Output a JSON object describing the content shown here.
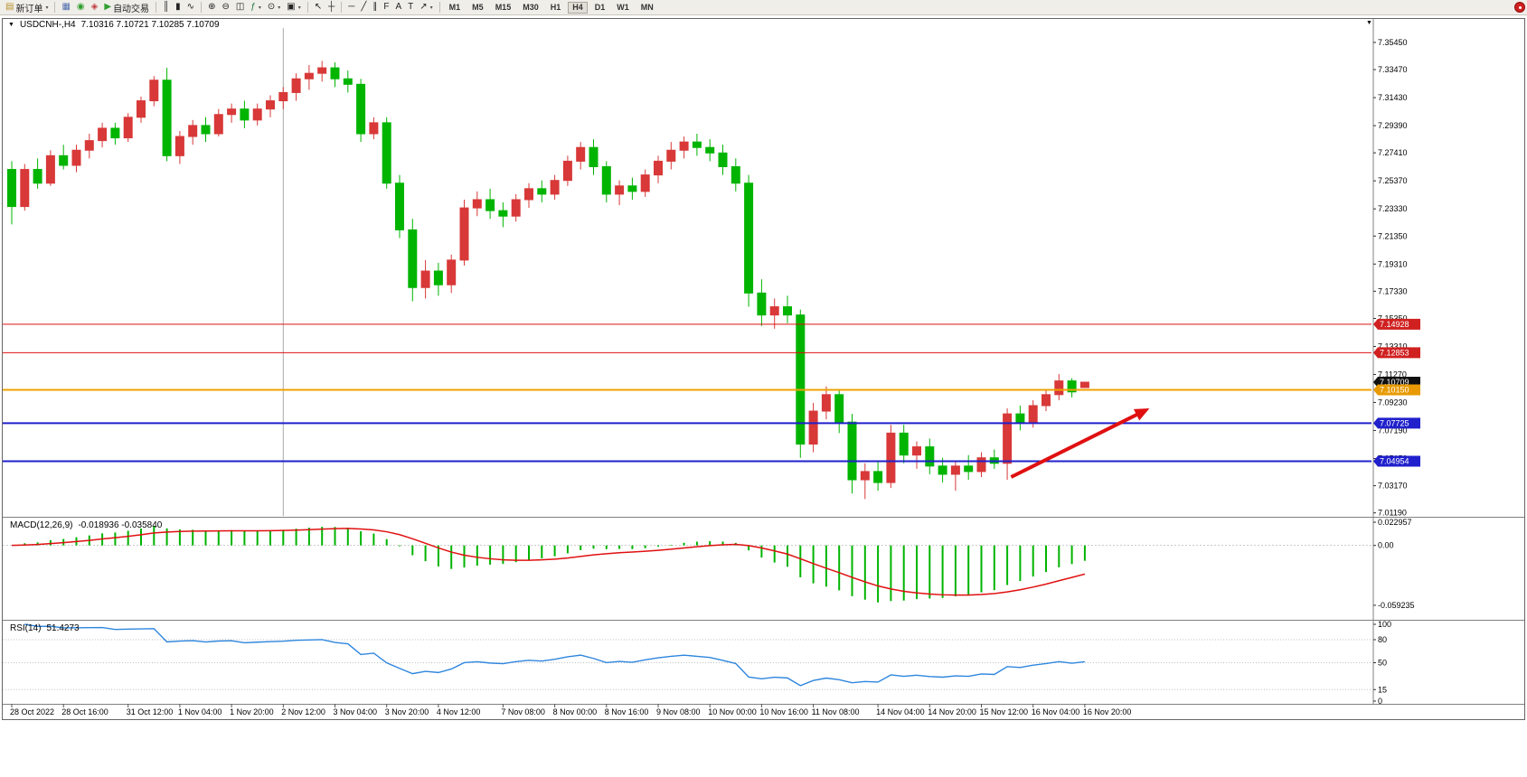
{
  "toolbar": {
    "buttons": [
      {
        "name": "new-order-button",
        "icon": "new-order-icon",
        "glyph": "▤",
        "color": "#b8902c",
        "label": "新订单",
        "dropdown": true
      },
      {
        "sep": true
      },
      {
        "name": "charts-window-button",
        "icon": "chart-window-icon",
        "glyph": "▦",
        "color": "#4f6fae"
      },
      {
        "name": "sound-alert-button",
        "icon": "speaker-icon",
        "glyph": "◉",
        "color": "#2f9e2f"
      },
      {
        "name": "news-button",
        "icon": "news-icon",
        "glyph": "◈",
        "color": "#bf4040"
      },
      {
        "name": "auto-trading-button",
        "icon": "auto-trading-icon",
        "glyph": "▶",
        "color": "#2f9e2f",
        "label": "自动交易"
      },
      {
        "sep": true
      },
      {
        "name": "bar-chart-button",
        "icon": "bar-chart-icon",
        "glyph": "║"
      },
      {
        "name": "candlestick-chart-button",
        "icon": "candlestick-icon",
        "glyph": "▮"
      },
      {
        "name": "line-chart-button",
        "icon": "line-chart-icon",
        "glyph": "∿"
      },
      {
        "sep": true
      },
      {
        "name": "zoom-in-button",
        "icon": "zoom-in-icon",
        "glyph": "⊕"
      },
      {
        "name": "zoom-out-button",
        "icon": "zoom-out-icon",
        "glyph": "⊖"
      },
      {
        "name": "tile-windows-button",
        "icon": "tile-windows-icon",
        "glyph": "◫"
      },
      {
        "name": "indicators-button",
        "icon": "indicators-icon",
        "glyph": "ƒ",
        "color": "#1f7a46",
        "dropdown": true
      },
      {
        "name": "periods-button",
        "icon": "clock-icon",
        "glyph": "⊙",
        "dropdown": true
      },
      {
        "name": "templates-button",
        "icon": "template-icon",
        "glyph": "▣",
        "dropdown": true
      },
      {
        "sep": true
      },
      {
        "name": "cursor-button",
        "icon": "cursor-icon",
        "glyph": "↖"
      },
      {
        "name": "crosshair-button",
        "icon": "crosshair-icon",
        "glyph": "┼"
      },
      {
        "sep": true
      },
      {
        "name": "horizontal-line-button",
        "icon": "horizontal-line-icon",
        "glyph": "─"
      },
      {
        "name": "trendline-button",
        "icon": "trendline-icon",
        "glyph": "╱"
      },
      {
        "name": "channel-button",
        "icon": "channel-icon",
        "glyph": "∥"
      },
      {
        "name": "fibonacci-button",
        "icon": "fibonacci-icon",
        "glyph": "F"
      },
      {
        "name": "text-button",
        "icon": "text-icon",
        "glyph": "A"
      },
      {
        "name": "text-label-button",
        "icon": "text-label-icon",
        "glyph": "T"
      },
      {
        "name": "arrows-button",
        "icon": "arrow-symbol-icon",
        "glyph": "↗",
        "dropdown": true
      },
      {
        "sep": true
      }
    ],
    "timeframes": [
      "M1",
      "M5",
      "M15",
      "M30",
      "H1",
      "H4",
      "D1",
      "W1",
      "MN"
    ],
    "active_timeframe": "H4"
  },
  "chart": {
    "symbol_period": "USDCNH-,H4",
    "ohlc": "7.10316 7.10721 7.10285 7.10709"
  },
  "indicators": {
    "macd": {
      "name": "MACD(12,26,9)",
      "values": "-0.018936 -0.035840",
      "scale": [
        "0.022957",
        "0.00",
        "-0.059235"
      ]
    },
    "rsi": {
      "name": "RSI(14)",
      "value": "51.4273",
      "scale": [
        "100",
        "80",
        "50",
        "15",
        "0"
      ],
      "levels": [
        80,
        50,
        15
      ]
    }
  },
  "chart_data": {
    "type": "candlestick",
    "symbol": "USDCNH-",
    "timeframe": "H4",
    "bull_color": "#d83838",
    "bear_color": "#00b400",
    "price_axis_labels": [
      "7.35450",
      "7.33470",
      "7.31430",
      "7.29390",
      "7.27410",
      "7.25370",
      "7.23330",
      "7.21350",
      "7.19310",
      "7.17330",
      "7.15350",
      "7.13310",
      "7.11270",
      "7.09230",
      "7.07190",
      "7.05150",
      "7.03170",
      "7.01190"
    ],
    "date_axis": [
      {
        "label": "28 Oct 2022",
        "bar": 0
      },
      {
        "label": "28 Oct 16:00",
        "bar": 4
      },
      {
        "label": "31 Oct 12:00",
        "bar": 9
      },
      {
        "label": "1 Nov 04:00",
        "bar": 13
      },
      {
        "label": "1 Nov 20:00",
        "bar": 17
      },
      {
        "label": "2 Nov 12:00",
        "bar": 21
      },
      {
        "label": "3 Nov 04:00",
        "bar": 25
      },
      {
        "label": "3 Nov 20:00",
        "bar": 29
      },
      {
        "label": "4 Nov 12:00",
        "bar": 33
      },
      {
        "label": "7 Nov 08:00",
        "bar": 38
      },
      {
        "label": "8 Nov 00:00",
        "bar": 42
      },
      {
        "label": "8 Nov 16:00",
        "bar": 46
      },
      {
        "label": "9 Nov 08:00",
        "bar": 50
      },
      {
        "label": "10 Nov 00:00",
        "bar": 54
      },
      {
        "label": "10 Nov 16:00",
        "bar": 58
      },
      {
        "label": "11 Nov 08:00",
        "bar": 62
      },
      {
        "label": "14 Nov 04:00",
        "bar": 67
      },
      {
        "label": "14 Nov 20:00",
        "bar": 71
      },
      {
        "label": "15 Nov 12:00",
        "bar": 75
      },
      {
        "label": "16 Nov 04:00",
        "bar": 79
      },
      {
        "label": "16 Nov 20:00",
        "bar": 83
      }
    ],
    "candles": [
      [
        7.262,
        7.268,
        7.222,
        7.235
      ],
      [
        7.235,
        7.266,
        7.232,
        7.262
      ],
      [
        7.262,
        7.27,
        7.248,
        7.252
      ],
      [
        7.252,
        7.276,
        7.25,
        7.272
      ],
      [
        7.272,
        7.28,
        7.262,
        7.265
      ],
      [
        7.265,
        7.28,
        7.26,
        7.276
      ],
      [
        7.276,
        7.288,
        7.27,
        7.283
      ],
      [
        7.283,
        7.296,
        7.278,
        7.292
      ],
      [
        7.292,
        7.296,
        7.28,
        7.285
      ],
      [
        7.285,
        7.303,
        7.282,
        7.3
      ],
      [
        7.3,
        7.315,
        7.296,
        7.312
      ],
      [
        7.312,
        7.33,
        7.308,
        7.327
      ],
      [
        7.327,
        7.336,
        7.268,
        7.272
      ],
      [
        7.272,
        7.29,
        7.266,
        7.286
      ],
      [
        7.286,
        7.298,
        7.28,
        7.294
      ],
      [
        7.294,
        7.3,
        7.282,
        7.288
      ],
      [
        7.288,
        7.306,
        7.286,
        7.302
      ],
      [
        7.302,
        7.31,
        7.296,
        7.306
      ],
      [
        7.306,
        7.312,
        7.292,
        7.298
      ],
      [
        7.298,
        7.31,
        7.294,
        7.306
      ],
      [
        7.306,
        7.316,
        7.3,
        7.312
      ],
      [
        7.312,
        7.322,
        7.306,
        7.318
      ],
      [
        7.318,
        7.332,
        7.312,
        7.328
      ],
      [
        7.328,
        7.338,
        7.32,
        7.332
      ],
      [
        7.332,
        7.341,
        7.326,
        7.336
      ],
      [
        7.336,
        7.34,
        7.322,
        7.328
      ],
      [
        7.328,
        7.334,
        7.318,
        7.324
      ],
      [
        7.324,
        7.328,
        7.282,
        7.288
      ],
      [
        7.288,
        7.3,
        7.284,
        7.296
      ],
      [
        7.296,
        7.3,
        7.248,
        7.252
      ],
      [
        7.252,
        7.258,
        7.212,
        7.218
      ],
      [
        7.218,
        7.226,
        7.166,
        7.176
      ],
      [
        7.176,
        7.196,
        7.168,
        7.188
      ],
      [
        7.188,
        7.194,
        7.17,
        7.178
      ],
      [
        7.178,
        7.2,
        7.172,
        7.196
      ],
      [
        7.196,
        7.24,
        7.192,
        7.234
      ],
      [
        7.234,
        7.246,
        7.228,
        7.24
      ],
      [
        7.24,
        7.248,
        7.226,
        7.232
      ],
      [
        7.232,
        7.238,
        7.22,
        7.228
      ],
      [
        7.228,
        7.244,
        7.224,
        7.24
      ],
      [
        7.24,
        7.252,
        7.234,
        7.248
      ],
      [
        7.248,
        7.254,
        7.238,
        7.244
      ],
      [
        7.244,
        7.258,
        7.24,
        7.254
      ],
      [
        7.254,
        7.272,
        7.25,
        7.268
      ],
      [
        7.268,
        7.282,
        7.262,
        7.278
      ],
      [
        7.278,
        7.284,
        7.258,
        7.264
      ],
      [
        7.264,
        7.268,
        7.238,
        7.244
      ],
      [
        7.244,
        7.254,
        7.236,
        7.25
      ],
      [
        7.25,
        7.256,
        7.24,
        7.246
      ],
      [
        7.246,
        7.262,
        7.242,
        7.258
      ],
      [
        7.258,
        7.272,
        7.252,
        7.268
      ],
      [
        7.268,
        7.282,
        7.262,
        7.276
      ],
      [
        7.276,
        7.286,
        7.27,
        7.282
      ],
      [
        7.282,
        7.288,
        7.272,
        7.278
      ],
      [
        7.278,
        7.284,
        7.268,
        7.274
      ],
      [
        7.274,
        7.28,
        7.258,
        7.264
      ],
      [
        7.264,
        7.27,
        7.246,
        7.252
      ],
      [
        7.252,
        7.258,
        7.162,
        7.172
      ],
      [
        7.172,
        7.182,
        7.148,
        7.156
      ],
      [
        7.156,
        7.168,
        7.146,
        7.162
      ],
      [
        7.162,
        7.17,
        7.15,
        7.156
      ],
      [
        7.156,
        7.16,
        7.052,
        7.062
      ],
      [
        7.062,
        7.092,
        7.056,
        7.086
      ],
      [
        7.086,
        7.104,
        7.08,
        7.098
      ],
      [
        7.098,
        7.102,
        7.07,
        7.078
      ],
      [
        7.078,
        7.084,
        7.026,
        7.036
      ],
      [
        7.036,
        7.048,
        7.022,
        7.042
      ],
      [
        7.042,
        7.05,
        7.028,
        7.034
      ],
      [
        7.034,
        7.076,
        7.03,
        7.07
      ],
      [
        7.07,
        7.076,
        7.048,
        7.054
      ],
      [
        7.054,
        7.064,
        7.044,
        7.06
      ],
      [
        7.06,
        7.066,
        7.04,
        7.046
      ],
      [
        7.046,
        7.052,
        7.034,
        7.04
      ],
      [
        7.04,
        7.05,
        7.028,
        7.046
      ],
      [
        7.046,
        7.054,
        7.036,
        7.042
      ],
      [
        7.042,
        7.056,
        7.038,
        7.052
      ],
      [
        7.052,
        7.058,
        7.044,
        7.048
      ],
      [
        7.048,
        7.088,
        7.036,
        7.084
      ],
      [
        7.084,
        7.09,
        7.072,
        7.078
      ],
      [
        7.078,
        7.094,
        7.074,
        7.09
      ],
      [
        7.09,
        7.102,
        7.086,
        7.098
      ],
      [
        7.098,
        7.113,
        7.094,
        7.108
      ],
      [
        7.108,
        7.11,
        7.096,
        7.1
      ],
      [
        7.10316,
        7.10721,
        7.10285,
        7.10709
      ]
    ],
    "hlines": [
      {
        "price": 7.14928,
        "color": "#e01010",
        "width": 1
      },
      {
        "price": 7.12853,
        "color": "#e01010",
        "width": 1
      },
      {
        "price": 7.1015,
        "color": "#f0a000",
        "width": 2
      },
      {
        "price": 7.07725,
        "color": "#2020cc",
        "width": 2
      },
      {
        "price": 7.04954,
        "color": "#2020cc",
        "width": 2
      }
    ],
    "price_badges": [
      {
        "label": "7.14928",
        "price": 7.14928,
        "bg": "#d02020"
      },
      {
        "label": "7.12853",
        "price": 7.12853,
        "bg": "#d02020"
      },
      {
        "label": "7.10709",
        "price": 7.10709,
        "bg": "#101010"
      },
      {
        "label": "7.10150",
        "price": 7.1015,
        "bg": "#e89a00"
      },
      {
        "label": "7.07725",
        "price": 7.07725,
        "bg": "#2020cc"
      },
      {
        "label": "7.04954",
        "price": 7.04954,
        "bg": "#2020cc"
      }
    ],
    "vline_bar": 21,
    "arrow": {
      "from_bar": 77.3,
      "from_price": 7.038,
      "to_bar": 88,
      "to_price": 7.088,
      "color": "#e01010"
    },
    "macd": {
      "params": [
        12,
        26,
        9
      ],
      "histogram_color": "#00b400",
      "signal_color": "#e01010",
      "range_labels": [
        "0.022957",
        "0.00",
        "-0.059235"
      ]
    },
    "rsi": {
      "period": 14,
      "color": "#2e86de",
      "last": 51.4273
    }
  }
}
